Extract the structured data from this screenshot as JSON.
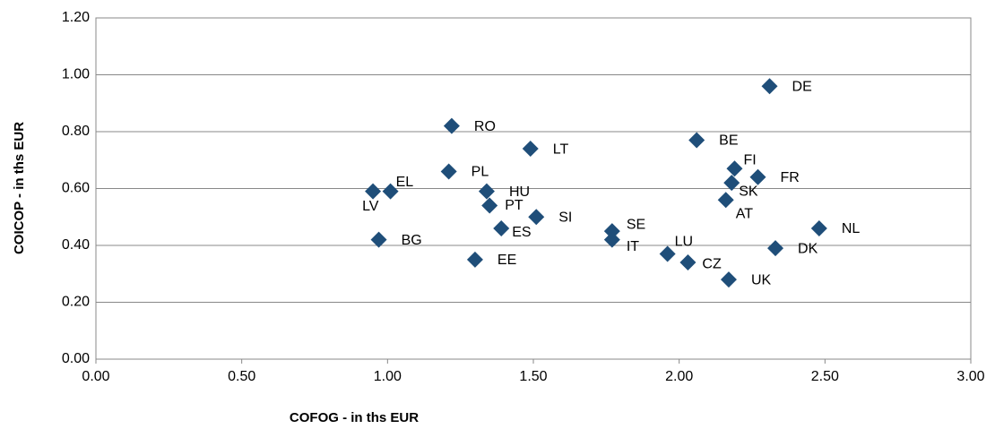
{
  "chart_data": {
    "type": "scatter",
    "xlabel": "COFOG - in ths EUR",
    "ylabel": "COICOP - in ths EUR",
    "color": "#1f4e79",
    "grid": true,
    "xlim": [
      0,
      3
    ],
    "ylim": [
      0,
      1.2
    ],
    "xticks": [
      {
        "value": 0,
        "label": "0.00"
      },
      {
        "value": 0.5,
        "label": "0.50"
      },
      {
        "value": 1,
        "label": "1.00"
      },
      {
        "value": 1.5,
        "label": "1.50"
      },
      {
        "value": 2,
        "label": "2.00"
      },
      {
        "value": 2.5,
        "label": "2.50"
      },
      {
        "value": 3,
        "label": "3.00"
      }
    ],
    "yticks": [
      {
        "value": 0,
        "label": "0.00"
      },
      {
        "value": 0.2,
        "label": "0.20"
      },
      {
        "value": 0.4,
        "label": "0.40"
      },
      {
        "value": 0.6,
        "label": "0.60"
      },
      {
        "value": 0.8,
        "label": "0.80"
      },
      {
        "value": 1,
        "label": "1.00"
      },
      {
        "value": 1.2,
        "label": "1.20"
      }
    ],
    "labels": [
      "DE",
      "RO",
      "LT",
      "BE",
      "FI",
      "FR",
      "SK",
      "AT",
      "PL",
      "EL",
      "LV",
      "HU",
      "PT",
      "SI",
      "ES",
      "BG",
      "EE",
      "SE",
      "IT",
      "LU",
      "CZ",
      "UK",
      "DK",
      "NL"
    ],
    "x": [
      2.31,
      1.22,
      1.49,
      2.06,
      2.19,
      2.27,
      2.18,
      2.16,
      1.21,
      1.01,
      0.95,
      1.34,
      1.35,
      1.51,
      1.39,
      0.97,
      1.3,
      1.77,
      1.77,
      1.96,
      2.03,
      2.17,
      2.33,
      2.48
    ],
    "y": [
      0.96,
      0.82,
      0.74,
      0.77,
      0.67,
      0.64,
      0.62,
      0.56,
      0.66,
      0.59,
      0.59,
      0.59,
      0.54,
      0.5,
      0.46,
      0.42,
      0.35,
      0.45,
      0.42,
      0.37,
      0.34,
      0.28,
      0.39,
      0.46
    ]
  }
}
